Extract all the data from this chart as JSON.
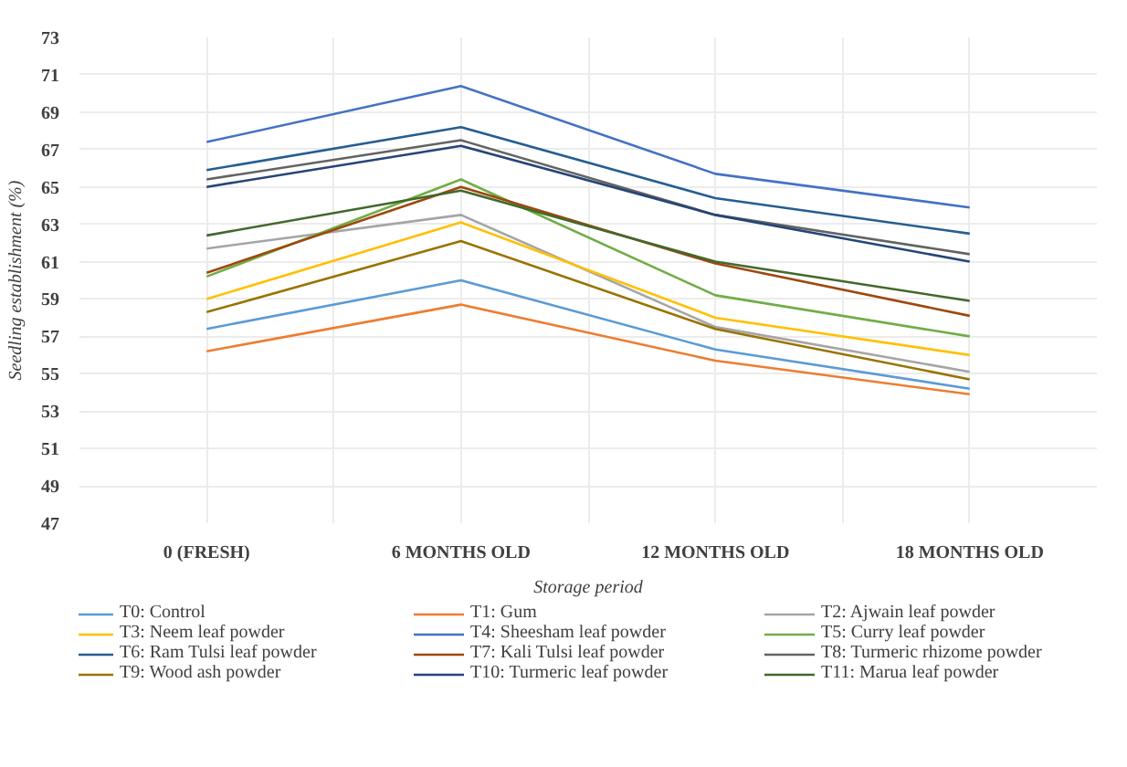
{
  "chart_data": {
    "type": "line",
    "xlabel": "Storage period",
    "ylabel": "Seedling establishment (%)",
    "categories": [
      "0 (FRESH)",
      "6 MONTHS OLD",
      "12 MONTHS OLD",
      "18 MONTHS OLD"
    ],
    "ylim": [
      47,
      73
    ],
    "yticks": [
      47,
      49,
      51,
      53,
      55,
      57,
      59,
      61,
      63,
      65,
      67,
      69,
      71,
      73
    ],
    "grid": true,
    "legend": "bottom",
    "marker": "none",
    "line_style": "solid",
    "series": [
      {
        "name": "T0: Control",
        "color": "#5b9bd5",
        "values": [
          57.4,
          60.0,
          56.3,
          54.2
        ]
      },
      {
        "name": "T1: Gum",
        "color": "#ed7d31",
        "values": [
          56.2,
          58.7,
          55.7,
          53.9
        ]
      },
      {
        "name": "T2: Ajwain leaf powder",
        "color": "#a5a5a5",
        "values": [
          61.7,
          63.5,
          57.5,
          55.1
        ]
      },
      {
        "name": "T3: Neem leaf powder",
        "color": "#ffc000",
        "values": [
          59.0,
          63.1,
          58.0,
          56.0
        ]
      },
      {
        "name": "T4: Sheesham leaf powder",
        "color": "#4472c4",
        "values": [
          67.4,
          70.4,
          65.7,
          63.9
        ]
      },
      {
        "name": "T5: Curry leaf powder",
        "color": "#70ad47",
        "values": [
          60.2,
          65.4,
          59.2,
          57.0
        ]
      },
      {
        "name": "T6: Ram Tulsi leaf powder",
        "color": "#255e91",
        "values": [
          65.9,
          68.2,
          64.4,
          62.5
        ]
      },
      {
        "name": "T7: Kali Tulsi leaf powder",
        "color": "#9e480e",
        "values": [
          60.4,
          65.0,
          60.9,
          58.1
        ]
      },
      {
        "name": "T8: Turmeric rhizome powder",
        "color": "#636363",
        "values": [
          65.4,
          67.5,
          63.5,
          61.4
        ]
      },
      {
        "name": "T9: Wood ash powder",
        "color": "#997300",
        "values": [
          58.3,
          62.1,
          57.4,
          54.7
        ]
      },
      {
        "name": "T10: Turmeric leaf powder",
        "color": "#264478",
        "values": [
          65.0,
          67.2,
          63.5,
          61.0
        ]
      },
      {
        "name": "T11: Marua leaf powder",
        "color": "#43682b",
        "values": [
          62.4,
          64.8,
          61.0,
          58.9
        ]
      }
    ]
  }
}
